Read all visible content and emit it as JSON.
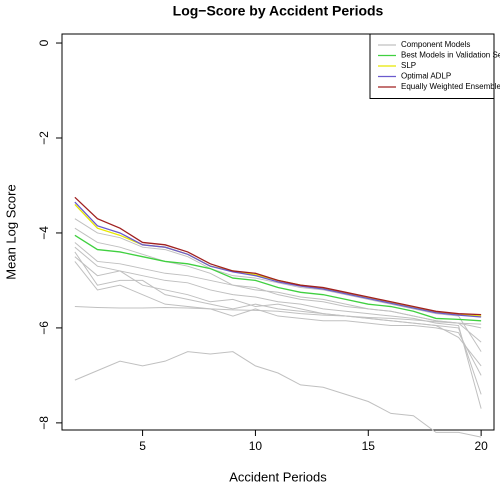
{
  "chart_data": {
    "type": "line",
    "title": "Log−Score by Accident Periods",
    "xlabel": "Accident Periods",
    "ylabel": "Mean Log Score",
    "x": [
      2,
      3,
      4,
      5,
      6,
      7,
      8,
      9,
      10,
      11,
      12,
      13,
      14,
      15,
      16,
      17,
      18,
      19,
      20
    ],
    "xlim": [
      1.43,
      20.57
    ],
    "ylim": [
      -8.15,
      0.19
    ],
    "xticks": [
      5,
      10,
      15,
      20
    ],
    "yticks": [
      0,
      {
        "value": -2,
        "label": "−2"
      },
      {
        "value": -4,
        "label": "−4"
      },
      {
        "value": -6,
        "label": "−6"
      },
      {
        "value": -8,
        "label": "−8"
      }
    ],
    "legend": "top-right",
    "component_models": {
      "name": "Component Models",
      "color": "#c0c0c0",
      "lines": [
        [
          -5.55,
          -5.57,
          -5.58,
          -5.58,
          -5.57,
          -5.58,
          -5.6,
          -5.62,
          -5.63,
          -5.65,
          -5.7,
          -5.73,
          -5.75,
          -5.78,
          -5.8,
          -5.83,
          -5.87,
          -5.9,
          -5.92
        ],
        [
          -7.1,
          -6.9,
          -6.7,
          -6.8,
          -6.7,
          -6.5,
          -6.55,
          -6.5,
          -6.8,
          -6.95,
          -7.2,
          -7.25,
          -7.4,
          -7.55,
          -7.8,
          -7.85,
          -8.2,
          -8.2,
          -8.3
        ],
        [
          -4.2,
          -4.6,
          -4.65,
          -4.75,
          -4.85,
          -4.9,
          -5.0,
          -5.1,
          -5.15,
          -5.3,
          -5.4,
          -5.45,
          -5.55,
          -5.6,
          -5.65,
          -5.75,
          -5.85,
          -5.9,
          -6.0
        ],
        [
          -4.3,
          -4.7,
          -4.8,
          -4.9,
          -5.0,
          -5.05,
          -5.2,
          -5.3,
          -5.35,
          -5.45,
          -5.5,
          -5.6,
          -5.65,
          -5.7,
          -5.75,
          -5.8,
          -5.9,
          -5.95,
          -7.7
        ],
        [
          -4.4,
          -5.1,
          -5.0,
          -5.0,
          -5.3,
          -5.4,
          -5.5,
          -5.6,
          -5.5,
          -5.6,
          -5.65,
          -5.7,
          -5.75,
          -5.8,
          -5.85,
          -5.9,
          -5.95,
          -6.0,
          -7.4
        ],
        [
          -4.6,
          -5.2,
          -5.1,
          -5.3,
          -5.5,
          -5.55,
          -5.6,
          -5.75,
          -5.6,
          -5.75,
          -5.8,
          -5.85,
          -5.85,
          -5.9,
          -5.95,
          -5.95,
          -6.0,
          -6.1,
          -7.0
        ],
        [
          -3.7,
          -4.0,
          -4.1,
          -4.3,
          -4.35,
          -4.5,
          -4.75,
          -4.9,
          -4.95,
          -5.05,
          -5.15,
          -5.2,
          -5.3,
          -5.4,
          -5.5,
          -5.6,
          -5.7,
          -5.75,
          -6.5
        ],
        [
          -3.9,
          -4.2,
          -4.3,
          -4.45,
          -4.6,
          -4.7,
          -4.85,
          -5.1,
          -5.2,
          -5.25,
          -5.35,
          -5.4,
          -5.5,
          -5.6,
          -5.65,
          -5.75,
          -5.85,
          -5.9,
          -6.3
        ],
        [
          -4.5,
          -4.9,
          -4.8,
          -5.1,
          -5.2,
          -5.3,
          -5.45,
          -5.4,
          -5.55,
          -5.5,
          -5.6,
          -5.7,
          -5.75,
          -5.8,
          -5.85,
          -5.9,
          -5.95,
          -6.2,
          -6.8
        ]
      ]
    },
    "series": [
      {
        "name": "Best Models in Validation Set",
        "color": "#40d040",
        "values": [
          -4.05,
          -4.35,
          -4.4,
          -4.5,
          -4.6,
          -4.65,
          -4.75,
          -4.95,
          -5.0,
          -5.15,
          -5.25,
          -5.3,
          -5.4,
          -5.5,
          -5.55,
          -5.65,
          -5.8,
          -5.82,
          -5.85
        ]
      },
      {
        "name": "SLP",
        "color": "#e8e800",
        "values": [
          -3.4,
          -3.9,
          -4.05,
          -4.25,
          -4.3,
          -4.45,
          -4.7,
          -4.8,
          -4.88,
          -5.0,
          -5.1,
          -5.17,
          -5.27,
          -5.37,
          -5.47,
          -5.57,
          -5.67,
          -5.72,
          -5.75
        ]
      },
      {
        "name": "Optimal ADLP",
        "color": "#6a5acd",
        "values": [
          -3.35,
          -3.85,
          -4.0,
          -4.25,
          -4.3,
          -4.45,
          -4.7,
          -4.82,
          -4.9,
          -5.03,
          -5.12,
          -5.18,
          -5.28,
          -5.38,
          -5.48,
          -5.58,
          -5.68,
          -5.73,
          -5.77
        ]
      },
      {
        "name": "Equally Weighted Ensemble",
        "color": "#a02020",
        "values": [
          -3.25,
          -3.7,
          -3.9,
          -4.2,
          -4.25,
          -4.4,
          -4.65,
          -4.8,
          -4.85,
          -5.0,
          -5.1,
          -5.15,
          -5.25,
          -5.35,
          -5.45,
          -5.55,
          -5.65,
          -5.7,
          -5.72
        ]
      }
    ]
  }
}
